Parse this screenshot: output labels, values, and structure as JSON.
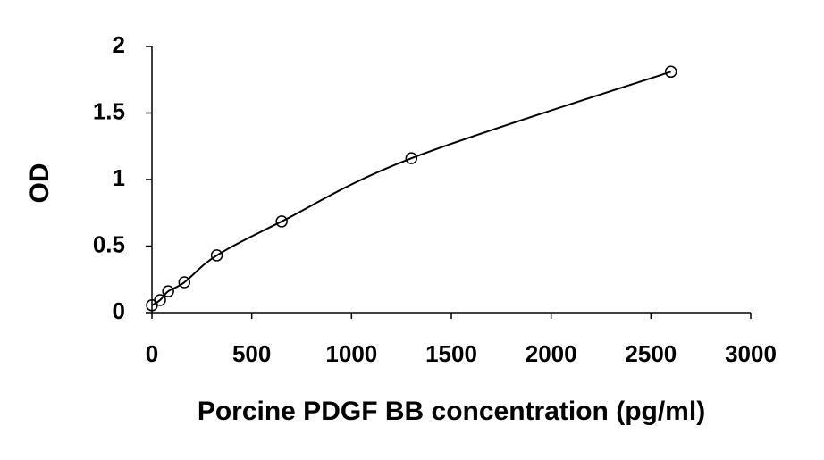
{
  "chart_data": {
    "type": "scatter",
    "x_label": "Porcine PDGF BB concentration (pg/ml)",
    "y_label": "OD",
    "x": [
      0,
      40.625,
      81.25,
      162.5,
      325,
      650,
      1300,
      2600
    ],
    "values": [
      0.055,
      0.094,
      0.16,
      0.228,
      0.43,
      0.685,
      1.16,
      1.81
    ],
    "color": "#000000",
    "fit_line": true,
    "xlim": [
      0,
      3000
    ],
    "xticks": [
      0,
      500,
      1000,
      1500,
      2000,
      2500,
      3000
    ],
    "ylim": [
      0,
      2
    ],
    "yticks": [
      0,
      0.5,
      1,
      1.5,
      2
    ],
    "grid": false
  }
}
